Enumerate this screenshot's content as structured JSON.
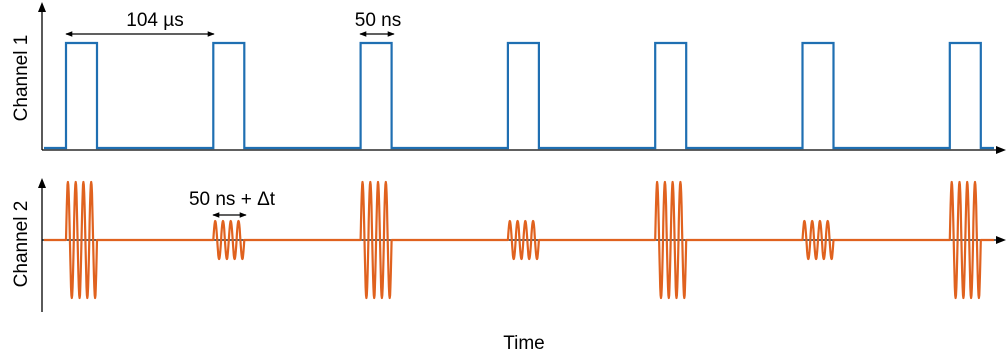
{
  "colors": {
    "channel1": "#1f6fb2",
    "channel2": "#e0621f",
    "axes": "#000000"
  },
  "channel1": {
    "label": "Channel 1",
    "pulse_count": 7
  },
  "channel2": {
    "label": "Channel 2",
    "burst_amplitudes": [
      "large",
      "small",
      "large",
      "small",
      "large",
      "small",
      "large"
    ]
  },
  "x_axis": {
    "label": "Time"
  },
  "annotations": {
    "period": "104 µs",
    "pulse_width": "50 ns",
    "burst_width": "50 ns + Δt"
  }
}
